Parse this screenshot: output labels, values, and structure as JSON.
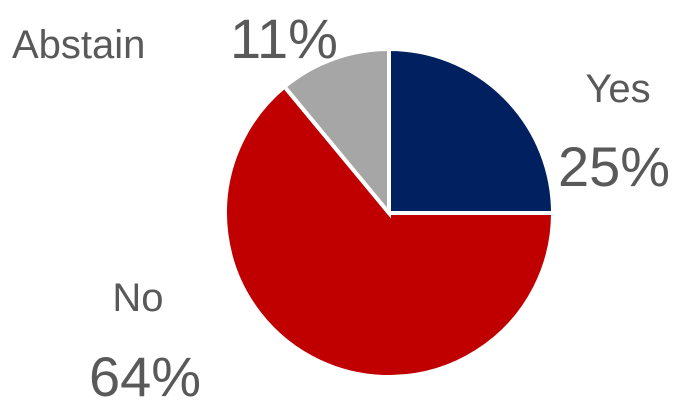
{
  "chart_data": {
    "type": "pie",
    "slices": [
      {
        "label": "Yes",
        "value": 25,
        "value_label": "25%",
        "color": "#002060"
      },
      {
        "label": "No",
        "value": 64,
        "value_label": "64%",
        "color": "#C00000"
      },
      {
        "label": "Abstain",
        "value": 11,
        "value_label": "11%",
        "color": "#A6A6A6"
      }
    ],
    "start_angle": "12 o'clock",
    "direction": "clockwise",
    "legend": "none",
    "data_labels": "category name and percentage outside each slice"
  }
}
